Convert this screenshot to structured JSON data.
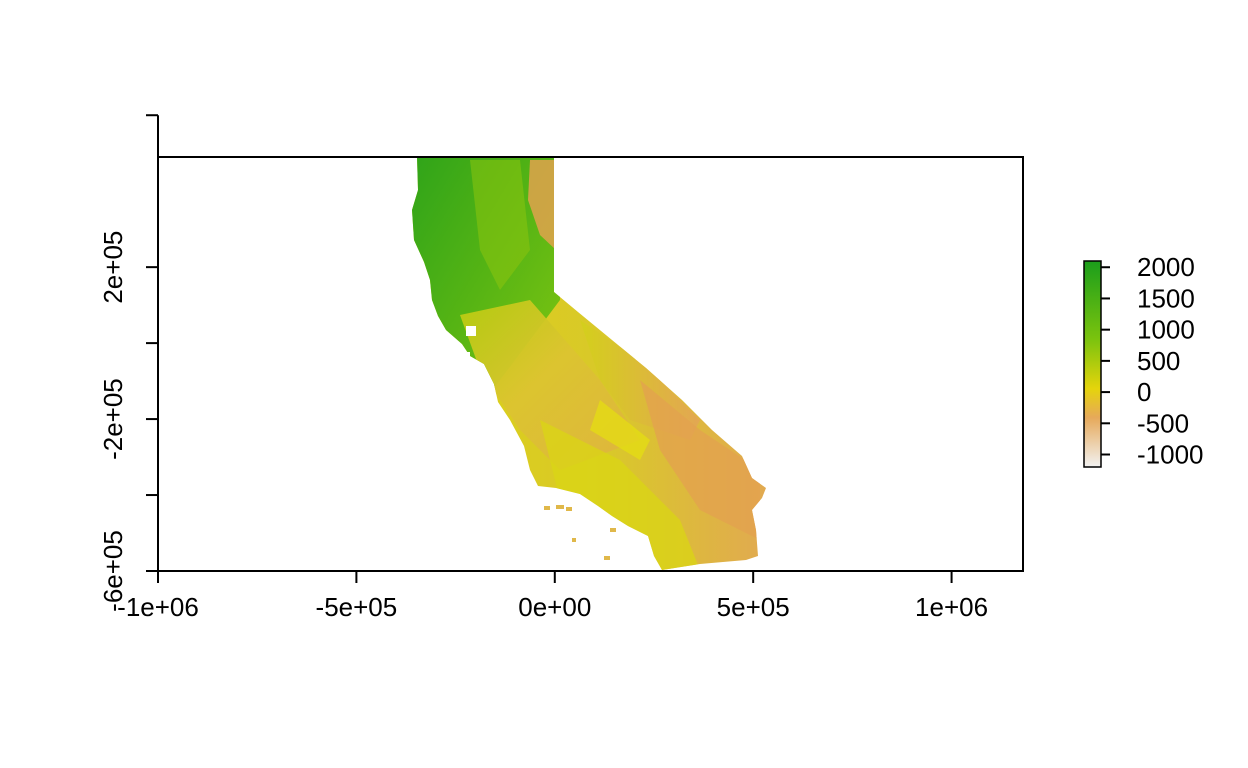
{
  "chart_data": {
    "type": "heatmap",
    "title": "",
    "xlabel": "",
    "ylabel": "",
    "x_ticks": [
      "-1e+06",
      "-5e+05",
      "0e+00",
      "5e+05",
      "1e+06"
    ],
    "x_tick_values": [
      -1000000,
      -500000,
      0,
      500000,
      1000000
    ],
    "y_ticks": [
      "-6e+05",
      "-2e+05",
      "2e+05"
    ],
    "y_tick_values": [
      -600000,
      -200000,
      200000
    ],
    "y_minor_tick_values": [
      600000,
      0,
      -400000
    ],
    "xlim": [
      -1000000,
      1180000
    ],
    "ylim": [
      -600000,
      490000
    ],
    "legend": {
      "placement": "right",
      "labels": [
        "2000",
        "1500",
        "1000",
        "500",
        "0",
        "-500",
        "-1000"
      ],
      "values": [
        2000,
        1500,
        1000,
        500,
        0,
        -500,
        -1000
      ],
      "range": [
        -1200,
        2100
      ],
      "colors": [
        "#f2f2f2",
        "#e6a95a",
        "#e5d40c",
        "#7bc30e",
        "#1b9e1b"
      ]
    },
    "grid": false
  }
}
